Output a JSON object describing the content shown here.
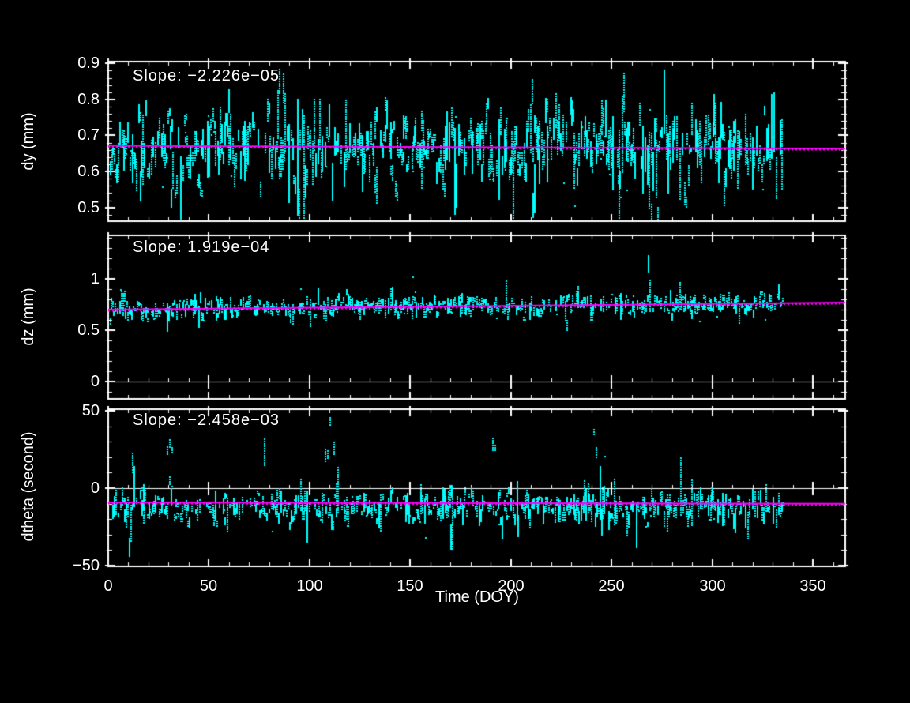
{
  "window": {
    "background": "#000000"
  },
  "chart_data": {
    "type": "scatter",
    "title": "",
    "xlabel": "Time (DOY)",
    "xlim": [
      0,
      366
    ],
    "x_tick_values": [
      0,
      50,
      100,
      150,
      200,
      250,
      300,
      350
    ],
    "x_tick_labels": [
      "0",
      "50",
      "100",
      "150",
      "200",
      "250",
      "300",
      "350"
    ],
    "x_minor_step": 10,
    "x_data_range": [
      0,
      336
    ],
    "grid": false,
    "colors": {
      "background": "#000000",
      "frame": "#FFFFFF",
      "points": "#00FFFF",
      "fit_line": "#FF00FF",
      "text": "#FFFFFF"
    },
    "panels": [
      {
        "ylabel": "dy (mm)",
        "annotation": "Slope: −2.226e−05",
        "slope_per_day": -2.226e-05,
        "ylim": [
          0.462,
          0.905
        ],
        "y_tick_values": [
          0.5,
          0.6,
          0.7,
          0.8,
          0.9
        ],
        "y_tick_labels": [
          "0.5",
          "0.6",
          "0.7",
          "0.8",
          "0.9"
        ],
        "y_minor_step": 0.02,
        "zero_axis": false,
        "fit_line": {
          "value_at_day_0": 0.6715,
          "value_at_day_366": 0.6634
        },
        "scatter_stats": {
          "mean": 0.665,
          "center_sigma": 0.05,
          "streak_half_min": 0.012,
          "streak_half_sigma": 0.03,
          "spike_prob": 0.07,
          "spike_extra_max": 0.1,
          "clip_min": 0.495,
          "clip_max": 0.9
        }
      },
      {
        "ylabel": "dz (mm)",
        "annotation": "Slope: 1.919e−04",
        "slope_per_day": 0.0001919,
        "ylim": [
          -0.169,
          1.423
        ],
        "y_tick_values": [
          0,
          0.5,
          1
        ],
        "y_tick_labels": [
          "0",
          "0.5",
          "1"
        ],
        "y_minor_step": 0.1,
        "zero_axis": true,
        "fit_line": {
          "value_at_day_0": 0.7,
          "value_at_day_366": 0.77
        },
        "scatter_stats": {
          "mean_start": 0.705,
          "mean_end": 0.768,
          "center_sigma": 0.038,
          "streak_half_min": 0.012,
          "streak_half_sigma": 0.03,
          "spike_prob": 0.09,
          "spike_extra_max": 0.11,
          "clip_min": 0.55,
          "clip_max": 0.92
        }
      },
      {
        "ylabel": "dtheta (second)",
        "annotation": "Slope: −2.458e−03",
        "slope_per_day": -0.002458,
        "ylim": [
          -50.5,
          51.0
        ],
        "y_tick_values": [
          -50,
          0,
          50
        ],
        "y_tick_labels": [
          "−50",
          "0",
          "50"
        ],
        "y_minor_step": 10,
        "zero_axis": true,
        "fit_line": {
          "value_at_day_0": -9.2,
          "value_at_day_366": -10.1
        },
        "scatter_stats": {
          "mean": -12.5,
          "center_sigma": 4.2,
          "streak_half_min": 0.8,
          "streak_half_sigma": 3.5,
          "spike_prob": 0.07,
          "spike_extra_max": 14,
          "clip_min": -40,
          "clip_max": -1.5,
          "upper_cluster": {
            "probability": 0.045,
            "min": 21,
            "max": 44
          }
        }
      }
    ]
  }
}
